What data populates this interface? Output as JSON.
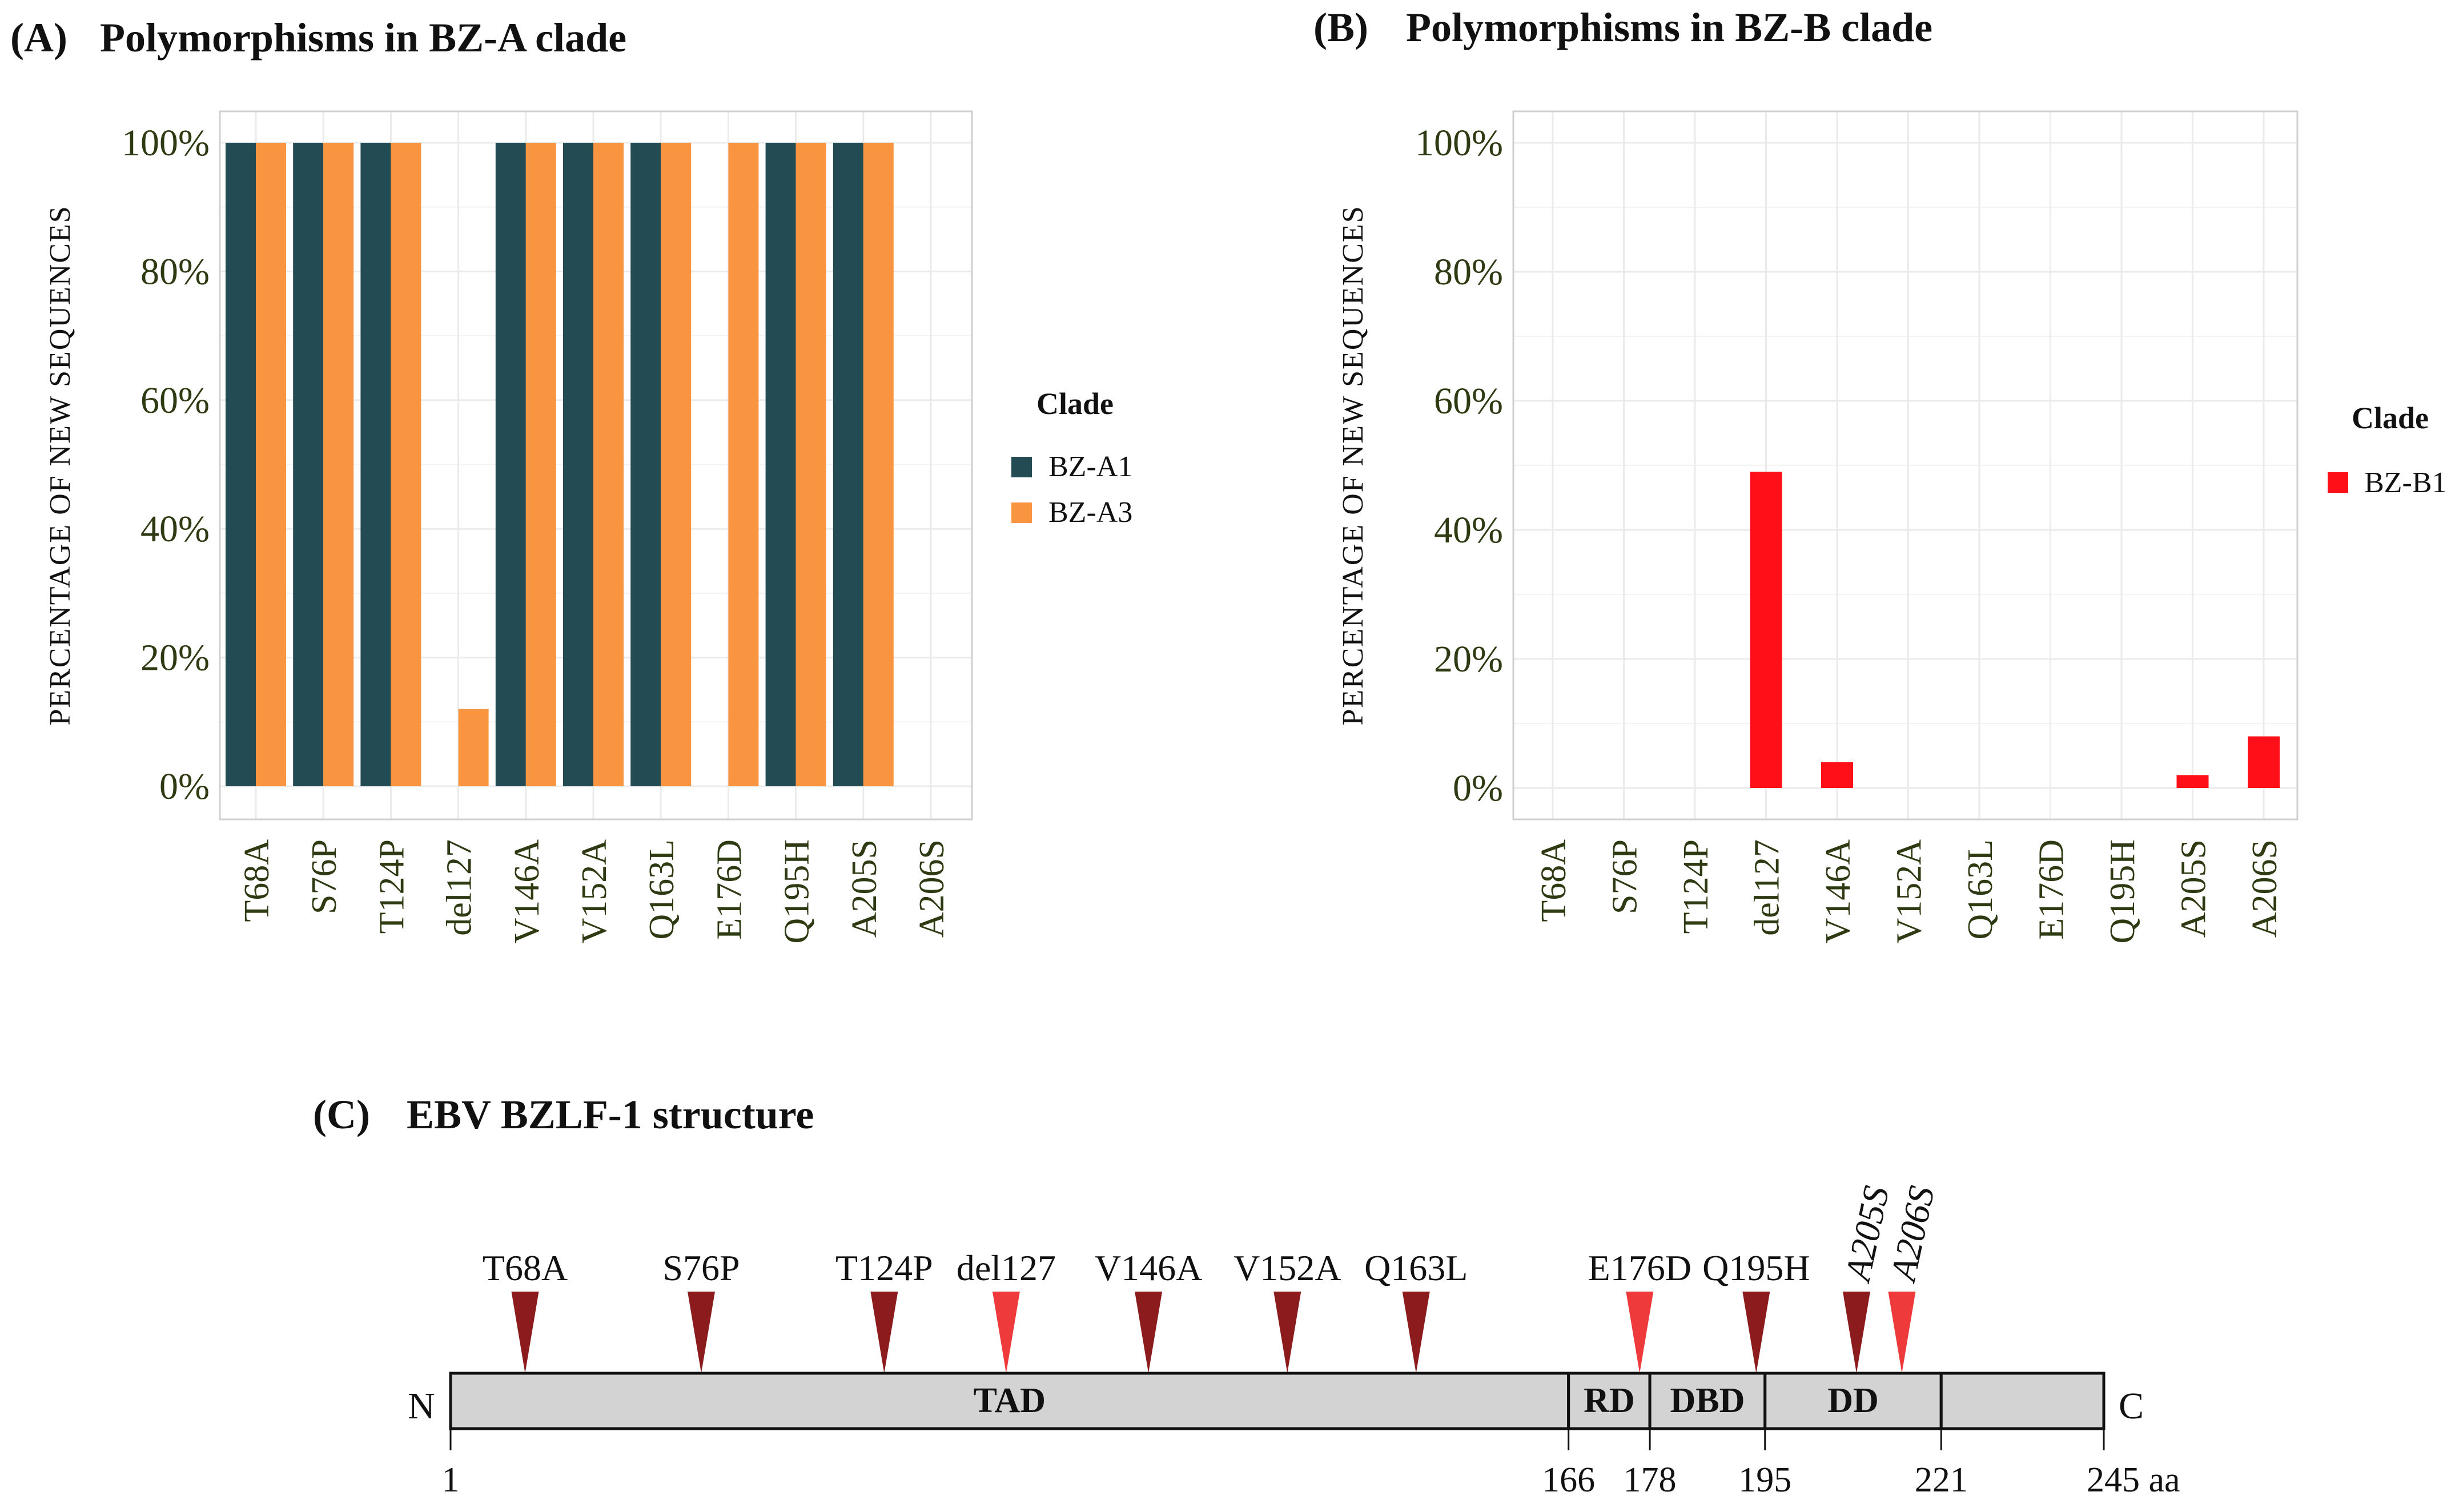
{
  "colors": {
    "bz_a1": "#234b53",
    "bz_a3": "#f99540",
    "bz_b1": "#ff0f17",
    "marker_dark": "#8c1b1d",
    "marker_light": "#ef3a3b",
    "protein_fill": "#d3d3d3"
  },
  "chart_data": [
    {
      "panel": "(A)",
      "type": "bar",
      "title": "Polymorphisms in BZ-A clade",
      "ylabel": "PERCENTAGE OF NEW SEQUENCES",
      "xlabel": "",
      "ylim": [
        0,
        100
      ],
      "yticks": [
        "0%",
        "20%",
        "40%",
        "60%",
        "80%",
        "100%"
      ],
      "categories": [
        "T68A",
        "S76P",
        "T124P",
        "del127",
        "V146A",
        "V152A",
        "Q163L",
        "E176D",
        "Q195H",
        "A205S",
        "A206S"
      ],
      "legend_title": "Clade",
      "series": [
        {
          "name": "BZ-A1",
          "color_key": "bz_a1",
          "values": [
            100,
            100,
            100,
            0,
            100,
            100,
            100,
            0,
            100,
            100,
            0
          ]
        },
        {
          "name": "BZ-A3",
          "color_key": "bz_a3",
          "values": [
            100,
            100,
            100,
            12,
            100,
            100,
            100,
            100,
            100,
            100,
            0
          ]
        }
      ]
    },
    {
      "panel": "(B)",
      "type": "bar",
      "title": "Polymorphisms in BZ-B clade",
      "ylabel": "PERCENTAGE OF NEW SEQUENCES",
      "xlabel": "",
      "ylim": [
        0,
        100
      ],
      "yticks": [
        "0%",
        "20%",
        "40%",
        "60%",
        "80%",
        "100%"
      ],
      "categories": [
        "T68A",
        "S76P",
        "T124P",
        "del127",
        "V146A",
        "V152A",
        "Q163L",
        "E176D",
        "Q195H",
        "A205S",
        "A206S"
      ],
      "legend_title": "Clade",
      "series": [
        {
          "name": "BZ-B1",
          "color_key": "bz_b1",
          "values": [
            0,
            0,
            0,
            49,
            4,
            0,
            0,
            0,
            0,
            2,
            8
          ]
        }
      ]
    }
  ],
  "structure": {
    "panel": "(C)",
    "title": "EBV BZLF-1 structure",
    "n_label": "N",
    "c_label": "C",
    "length": 245,
    "unit": "aa",
    "start_label": "1",
    "domains": [
      {
        "name": "TAD",
        "start": 1,
        "end": 166
      },
      {
        "name": "RD",
        "start": 166,
        "end": 178
      },
      {
        "name": "DBD",
        "start": 178,
        "end": 195
      },
      {
        "name": "DD",
        "start": 195,
        "end": 221
      },
      {
        "name": "",
        "start": 221,
        "end": 245
      }
    ],
    "boundary_labels": [
      "166",
      "178",
      "195",
      "221",
      "245 aa"
    ],
    "mutations": [
      {
        "label": "T68A",
        "pos": 12,
        "tone": "dark",
        "rotated": false
      },
      {
        "label": "S76P",
        "pos": 38,
        "tone": "dark",
        "rotated": false
      },
      {
        "label": "T124P",
        "pos": 65,
        "tone": "dark",
        "rotated": false
      },
      {
        "label": "del127",
        "pos": 83,
        "tone": "light",
        "rotated": false
      },
      {
        "label": "V146A",
        "pos": 104,
        "tone": "dark",
        "rotated": false
      },
      {
        "label": "V152A",
        "pos": 124.5,
        "tone": "dark",
        "rotated": false
      },
      {
        "label": "Q163L",
        "pos": 143.5,
        "tone": "dark",
        "rotated": false
      },
      {
        "label": "E176D",
        "pos": 176.5,
        "tone": "light",
        "rotated": false
      },
      {
        "label": "Q195H",
        "pos": 193.7,
        "tone": "dark",
        "rotated": false
      },
      {
        "label": "A205S",
        "pos": 208.5,
        "tone": "dark",
        "rotated": true
      },
      {
        "label": "A206S",
        "pos": 215.2,
        "tone": "light",
        "rotated": true
      }
    ]
  }
}
